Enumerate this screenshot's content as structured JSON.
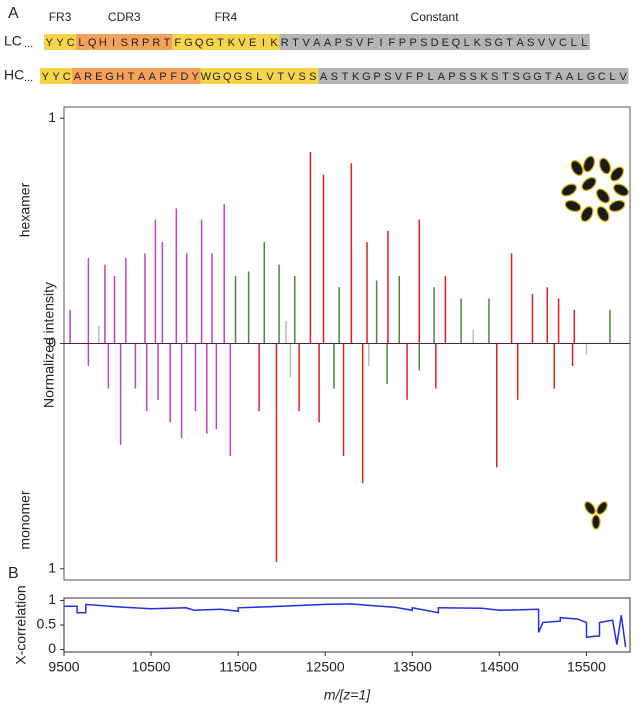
{
  "panel_labels": [
    "A",
    "B"
  ],
  "sequence": {
    "regions": [
      {
        "label": "FR3"
      },
      {
        "label": "CDR3"
      },
      {
        "label": "FR4"
      },
      {
        "label": "Constant"
      }
    ],
    "chains": [
      {
        "label": "LC",
        "color": "#c040c0",
        "lead": "...",
        "segments": [
          {
            "color": "#f7d54a",
            "residues": [
              "Y",
              "Y",
              "C"
            ]
          },
          {
            "color": "#f4a15c",
            "residues": [
              "L",
              "Q",
              "H",
              "I",
              "S",
              "R",
              "P",
              "R",
              "T"
            ]
          },
          {
            "color": "#f7d54a",
            "residues": [
              "F",
              "G",
              "Q",
              "G",
              "T",
              "K",
              "V",
              "E",
              "I",
              "K"
            ]
          },
          {
            "color": "#b4b4b4",
            "residues": [
              "R",
              "T",
              "V",
              "A",
              "A",
              "P",
              "S",
              "V",
              "F",
              "I",
              "F",
              "P",
              "P",
              "S",
              "D",
              "E",
              "Q",
              "L",
              "K",
              "S",
              "G",
              "T",
              "A",
              "S",
              "V",
              "V",
              "C",
              "L",
              "L"
            ]
          }
        ]
      },
      {
        "label": "HC",
        "color": "#e02020",
        "lead": "...",
        "segments": [
          {
            "color": "#f7d54a",
            "residues": [
              "Y",
              "Y",
              "C"
            ]
          },
          {
            "color": "#f4a15c",
            "residues": [
              "A",
              "R",
              "E",
              "G",
              "H",
              "T",
              "A",
              "A",
              "P",
              "F",
              "D",
              "Y"
            ]
          },
          {
            "color": "#f7d54a",
            "residues": [
              "W",
              "G",
              "Q",
              "G",
              "S",
              "L",
              "V",
              "T",
              "V",
              "S",
              "S"
            ]
          },
          {
            "color": "#b4b4b4",
            "residues": [
              "A",
              "S",
              "T",
              "K",
              "G",
              "P",
              "S",
              "V",
              "F",
              "P",
              "L",
              "A",
              "P",
              "S",
              "S",
              "K",
              "S",
              "T",
              "S",
              "G",
              "G",
              "T",
              "A",
              "A",
              "L",
              "G",
              "C",
              "L",
              "V"
            ]
          }
        ]
      }
    ]
  },
  "chart_data": [
    {
      "type": "stem",
      "y_labels": [
        "hexamer",
        "Normalized intensity",
        "monomer"
      ],
      "xlim": [
        9500,
        16000
      ],
      "ylim": [
        -1.05,
        1.05
      ],
      "yticks": [
        {
          "value": 1,
          "label": "1"
        },
        0,
        {
          "value": -1,
          "label": "1"
        }
      ],
      "series": [
        {
          "color": "#c040c0",
          "x": [
            9570,
            9780,
            9970,
            10080,
            10210,
            10430,
            10550,
            10630,
            10790,
            10910,
            11080,
            11200,
            11340,
            9780,
            10010,
            10150,
            10320,
            10450,
            10580,
            10720,
            10850,
            11010,
            11140,
            11250,
            11410
          ],
          "values": [
            0.15,
            0.38,
            0.35,
            0.3,
            0.38,
            0.4,
            0.55,
            0.45,
            0.6,
            0.4,
            0.55,
            0.4,
            0.62,
            -0.1,
            -0.2,
            -0.45,
            -0.2,
            -0.3,
            -0.25,
            -0.35,
            -0.42,
            -0.3,
            -0.4,
            -0.38,
            -0.5
          ]
        },
        {
          "color": "#e02020",
          "x": [
            12330,
            12480,
            12800,
            12980,
            13220,
            13580,
            13880,
            14640,
            14880,
            15050,
            15180,
            15360,
            11740,
            11940,
            12200,
            12430,
            12710,
            12930,
            13440,
            13770,
            14470,
            14710,
            15130,
            15340
          ],
          "values": [
            0.85,
            0.75,
            0.8,
            0.45,
            0.5,
            0.55,
            0.3,
            0.4,
            0.22,
            0.25,
            0.2,
            0.15,
            -0.3,
            -0.97,
            -0.3,
            -0.35,
            -0.5,
            -0.62,
            -0.25,
            -0.2,
            -0.55,
            -0.25,
            -0.2,
            -0.1
          ]
        },
        {
          "color": "#4a8a2a",
          "x": [
            11470,
            11620,
            11800,
            11970,
            12150,
            12660,
            13090,
            13350,
            13750,
            14060,
            14380,
            15770,
            12600,
            13210,
            13580
          ],
          "values": [
            0.3,
            0.32,
            0.45,
            0.35,
            0.3,
            0.25,
            0.28,
            0.3,
            0.25,
            0.2,
            0.2,
            0.15,
            -0.2,
            -0.18,
            -0.12
          ]
        },
        {
          "color": "#bdbdbd",
          "x": [
            9900,
            12050,
            14200,
            12100,
            13000,
            15500
          ],
          "values": [
            0.08,
            0.1,
            0.06,
            -0.15,
            -0.1,
            -0.05
          ]
        }
      ]
    },
    {
      "type": "line",
      "y_label": "X-correlation",
      "x_label": "m/[z=1]",
      "xlim": [
        9500,
        16000
      ],
      "ylim": [
        -0.05,
        1.05
      ],
      "xticks": [
        9500,
        10500,
        11500,
        12500,
        13500,
        14500,
        15500
      ],
      "yticks": [
        0,
        0.5,
        1
      ],
      "series": [
        {
          "color": "#2030e0",
          "x": [
            9500,
            9650,
            9650,
            9750,
            9750,
            10100,
            10500,
            10900,
            11000,
            11300,
            11500,
            11500,
            12000,
            12500,
            12800,
            13000,
            13300,
            13500,
            13500,
            13800,
            13800,
            14300,
            14500,
            14950,
            14950,
            15000,
            15200,
            15200,
            15400,
            15500,
            15500,
            15650,
            15650,
            15800,
            15850,
            15900,
            15950
          ],
          "values": [
            0.88,
            0.88,
            0.75,
            0.75,
            0.92,
            0.87,
            0.83,
            0.85,
            0.8,
            0.82,
            0.78,
            0.85,
            0.88,
            0.92,
            0.93,
            0.9,
            0.86,
            0.8,
            0.85,
            0.75,
            0.85,
            0.84,
            0.8,
            0.82,
            0.35,
            0.55,
            0.58,
            0.65,
            0.62,
            0.55,
            0.25,
            0.28,
            0.55,
            0.6,
            0.1,
            0.7,
            0.05
          ]
        }
      ]
    }
  ]
}
